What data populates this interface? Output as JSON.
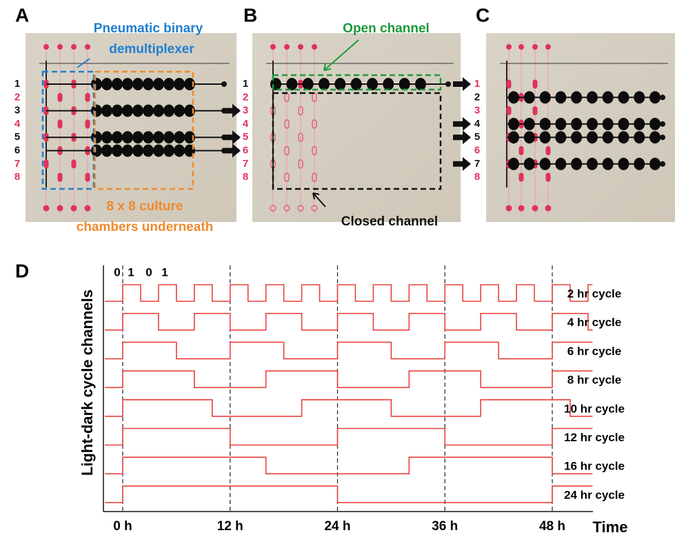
{
  "panels": [
    {
      "label": "A",
      "annotations": [
        "Pneumatic binary",
        "demultiplexer",
        "8 x 8 culture",
        "chambers underneath"
      ],
      "channels": [
        {
          "label": "1",
          "open": true
        },
        {
          "label": "2",
          "open": false
        },
        {
          "label": "3",
          "open": true
        },
        {
          "label": "4",
          "open": false
        },
        {
          "label": "5",
          "open": true
        },
        {
          "label": "6",
          "open": true
        },
        {
          "label": "7",
          "open": false
        },
        {
          "label": "8",
          "open": false
        }
      ]
    },
    {
      "label": "B",
      "annotations": [
        "Open channel",
        "Closed channel"
      ],
      "channels": [
        {
          "label": "1",
          "open": true
        },
        {
          "label": "2",
          "open": false
        },
        {
          "label": "3",
          "open": false
        },
        {
          "label": "4",
          "open": false
        },
        {
          "label": "5",
          "open": false
        },
        {
          "label": "6",
          "open": false
        },
        {
          "label": "7",
          "open": false
        },
        {
          "label": "8",
          "open": false
        }
      ]
    },
    {
      "label": "C",
      "annotations": [],
      "channels": [
        {
          "label": "1",
          "open": false
        },
        {
          "label": "2",
          "open": true
        },
        {
          "label": "3",
          "open": false
        },
        {
          "label": "4",
          "open": true
        },
        {
          "label": "5",
          "open": true
        },
        {
          "label": "6",
          "open": false
        },
        {
          "label": "7",
          "open": true
        },
        {
          "label": "8",
          "open": false
        }
      ]
    }
  ],
  "timing": {
    "label": "D",
    "ylabel": "Light-dark cycle channels",
    "xlabel": "Time",
    "state_labels": [
      "0",
      "1",
      "0",
      "1"
    ],
    "xlim": [
      -2,
      52.5
    ],
    "xticks": [
      {
        "value": 0,
        "label": "0 h"
      },
      {
        "value": 12,
        "label": "12 h"
      },
      {
        "value": 24,
        "label": "24 h"
      },
      {
        "value": 36,
        "label": "36 h"
      },
      {
        "value": 48,
        "label": "48 h"
      }
    ],
    "color": "#e8403c",
    "cycles": [
      {
        "label": "2 hr cycle",
        "hours": 2
      },
      {
        "label": "4 hr cycle",
        "hours": 4
      },
      {
        "label": "6 hr cycle",
        "hours": 6
      },
      {
        "label": "8 hr cycle",
        "hours": 8
      },
      {
        "label": "10 hr cycle",
        "hours": 10
      },
      {
        "label": "12 hr cycle",
        "hours": 12
      },
      {
        "label": "16 hr cycle",
        "hours": 16
      },
      {
        "label": "24 hr cycle",
        "hours": 24
      }
    ]
  }
}
